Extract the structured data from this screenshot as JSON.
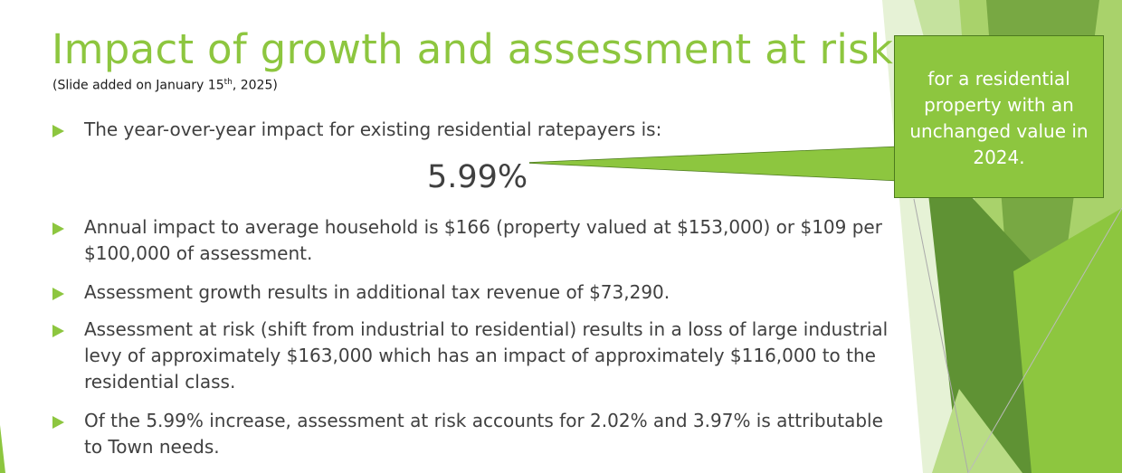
{
  "slide": {
    "title": "Impact of growth and assessment at risk",
    "subtitle_prefix": "(Slide added on January 15",
    "subtitle_sup": "th",
    "subtitle_suffix": ", 2025)",
    "highlight_value": "5.99%",
    "callout_text": "for a residential property with an unchanged value in 2024.",
    "bullets": [
      "The year-over-year impact for existing residential ratepayers is:",
      "Annual impact to average household is $166 (property valued at $153,000) or $109 per $100,000 of assessment.",
      "Assessment growth results in additional tax revenue of $73,290.",
      "Assessment at risk (shift from industrial to residential) results in a loss of large industrial levy of approximately $163,000 which has an impact of approximately $116,000 to the residential class.",
      "Of the 5.99% increase, assessment at risk accounts for 2.02% and 3.97% is attributable to Town needs."
    ]
  },
  "colors": {
    "title": "#8dc63f",
    "callout_fill": "#8dc63f",
    "callout_border": "#4c7a1e",
    "body_text": "#404040"
  }
}
